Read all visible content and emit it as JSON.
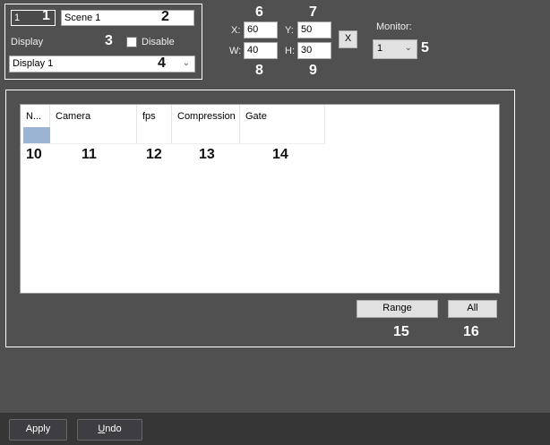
{
  "scene": {
    "number": "1",
    "name": "Scene 1",
    "display_label": "Display",
    "disable_label": "Disable",
    "disable_checked": false,
    "display_value": "Display 1"
  },
  "coords": {
    "x_label": "X:",
    "x": "60",
    "y_label": "Y:",
    "y": "50",
    "w_label": "W:",
    "w": "40",
    "h_label": "H:",
    "h": "30",
    "clear_label": "X"
  },
  "monitor": {
    "label": "Monitor:",
    "value": "1"
  },
  "table": {
    "columns": [
      "N...",
      "Camera",
      "fps",
      "Compression",
      "Gate"
    ],
    "selection_color": "#9cb4d3"
  },
  "buttons": {
    "range": "Range",
    "all": "All",
    "apply": "Apply",
    "undo_u": "U",
    "undo_rest": "ndo"
  },
  "callouts": [
    "1",
    "2",
    "3",
    "4",
    "5",
    "6",
    "7",
    "8",
    "9",
    "10",
    "11",
    "12",
    "13",
    "14",
    "15",
    "16"
  ]
}
